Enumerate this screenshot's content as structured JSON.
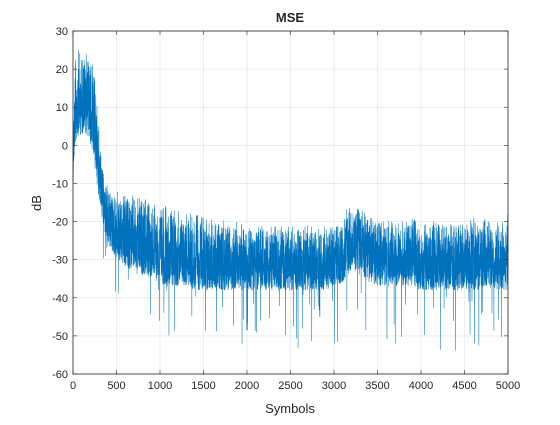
{
  "chart_data": {
    "type": "line",
    "title": "MSE",
    "xlabel": "Symbols",
    "ylabel": "dB",
    "xlim": [
      0,
      5000
    ],
    "ylim": [
      -60,
      30
    ],
    "xticks": [
      0,
      500,
      1000,
      1500,
      2000,
      2500,
      3000,
      3500,
      4000,
      4500,
      5000
    ],
    "yticks": [
      30,
      20,
      10,
      0,
      -10,
      -20,
      -30,
      -40,
      -50,
      -60
    ],
    "xtick_labels": [
      "0",
      "500",
      "1000",
      "1500",
      "2000",
      "2500",
      "3000",
      "3500",
      "4000",
      "4500",
      "5000"
    ],
    "ytick_labels": [
      "30",
      "20",
      "10",
      "0",
      "-10",
      "-20",
      "-30",
      "-40",
      "-50",
      "-60"
    ],
    "grid": true,
    "series_color": "#0072BD",
    "series": [
      {
        "x": [
          0,
          25,
          50,
          75,
          100,
          125,
          150,
          175,
          200,
          225,
          250,
          275,
          300,
          325,
          350,
          375,
          400,
          450,
          500,
          600,
          700,
          800,
          900,
          1000,
          1100,
          1200,
          1300,
          1400,
          1500,
          1600,
          1700,
          1800,
          1900,
          2000,
          2100,
          2200,
          2300,
          2400,
          2500,
          2600,
          2700,
          2800,
          2900,
          3000,
          3100,
          3150,
          3200,
          3250,
          3300,
          3350,
          3400,
          3500,
          3600,
          3700,
          3800,
          3900,
          4000,
          4100,
          4200,
          4300,
          4400,
          4500,
          4600,
          4700,
          4800,
          4900,
          5000
        ],
        "envelope_high": [
          10,
          22,
          26,
          25,
          24,
          25,
          24,
          25,
          23,
          22,
          18,
          12,
          5,
          -2,
          -7,
          -9,
          -11,
          -12,
          -12,
          -13,
          -13,
          -14,
          -14,
          -15,
          -16,
          -17,
          -17,
          -18,
          -18,
          -19,
          -19,
          -20,
          -20,
          -21,
          -21,
          -21,
          -21,
          -21,
          -21,
          -21,
          -21,
          -21,
          -21,
          -21,
          -20,
          -16,
          -15,
          -15,
          -16,
          -17,
          -18,
          -19,
          -19,
          -19,
          -19,
          -19,
          -20,
          -20,
          -20,
          -20,
          -20,
          -20,
          -19,
          -19,
          -19,
          -18,
          -18
        ],
        "envelope_low": [
          -10,
          0,
          2,
          3,
          2,
          4,
          3,
          2,
          0,
          -2,
          -6,
          -10,
          -14,
          -18,
          -22,
          -24,
          -26,
          -28,
          -30,
          -32,
          -33,
          -34,
          -35,
          -36,
          -37,
          -37,
          -37,
          -38,
          -38,
          -38,
          -38,
          -38,
          -38,
          -38,
          -38,
          -38,
          -38,
          -38,
          -38,
          -38,
          -38,
          -38,
          -38,
          -37,
          -36,
          -34,
          -33,
          -33,
          -34,
          -35,
          -36,
          -37,
          -37,
          -37,
          -37,
          -37,
          -38,
          -38,
          -38,
          -38,
          -38,
          -38,
          -38,
          -38,
          -38,
          -38,
          -38
        ]
      }
    ]
  }
}
